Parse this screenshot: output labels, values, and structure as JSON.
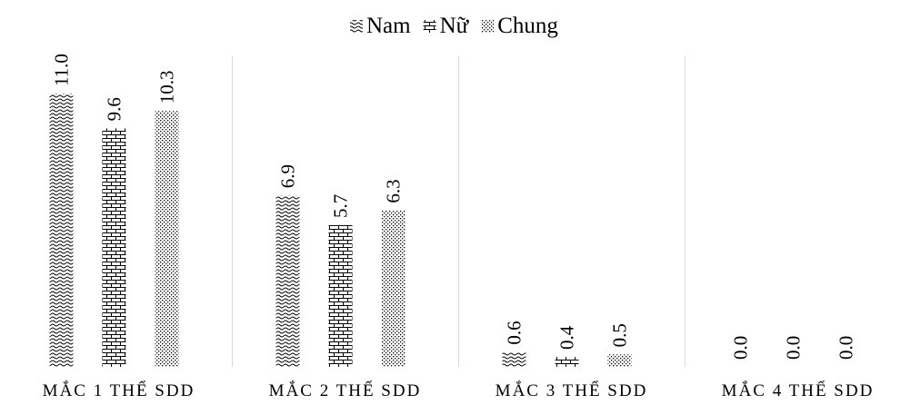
{
  "chart_data": {
    "type": "bar",
    "categories": [
      "MẮC 1 THỂ SDD",
      "MẮC 2 THỂ SDD",
      "MẮC 3 THỂ SDD",
      "MẮC 4 THỂ SDD"
    ],
    "series": [
      {
        "name": "Nam",
        "values": [
          11.0,
          6.9,
          0.6,
          0.0
        ],
        "pattern": "wave",
        "value_labels": [
          "11.0",
          "6.9",
          "0.6",
          "0.0"
        ]
      },
      {
        "name": "Nữ",
        "values": [
          9.6,
          5.7,
          0.4,
          0.0
        ],
        "pattern": "brick",
        "value_labels": [
          "9.6",
          "5.7",
          "0.4",
          "0.0"
        ]
      },
      {
        "name": "Chung",
        "values": [
          10.3,
          6.3,
          0.5,
          0.0
        ],
        "pattern": "dots",
        "value_labels": [
          "10.3",
          "6.3",
          "0.5",
          "0.0"
        ]
      }
    ],
    "ylim": [
      0,
      12.5
    ],
    "legend_position": "top-center",
    "grid": false,
    "colors": {
      "bar_fill": "#000000",
      "background": "#ffffff",
      "separator": "#d9d9d9"
    }
  }
}
